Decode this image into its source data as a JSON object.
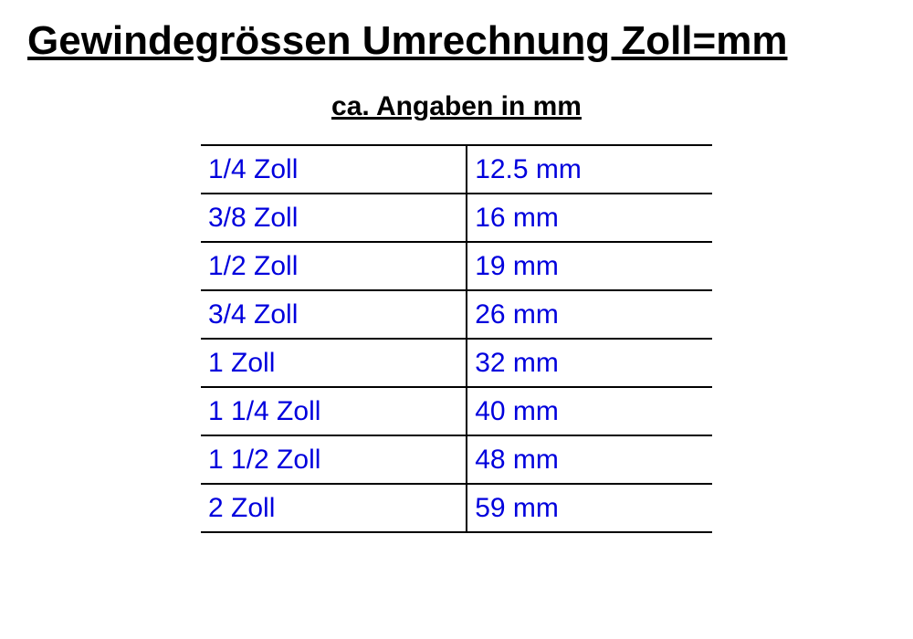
{
  "header": {
    "title": "Gewindegrössen Umrechnung Zoll=mm",
    "subtitle": "ca. Angaben in mm"
  },
  "table": {
    "type": "table",
    "text_color": "#0000dd",
    "border_color": "#000000",
    "background_color": "#ffffff",
    "cell_fontsize": 30,
    "rows": [
      {
        "zoll": "1/4 Zoll",
        "mm": "12.5 mm"
      },
      {
        "zoll": "3/8 Zoll",
        "mm": "16 mm"
      },
      {
        "zoll": "1/2 Zoll",
        "mm": "19 mm"
      },
      {
        "zoll": "3/4 Zoll",
        "mm": "26 mm"
      },
      {
        "zoll": "1 Zoll",
        "mm": "32 mm"
      },
      {
        "zoll": "1 1/4 Zoll",
        "mm": "40 mm"
      },
      {
        "zoll": "1 1/2 Zoll",
        "mm": "48 mm"
      },
      {
        "zoll": "2 Zoll",
        "mm": "59 mm"
      }
    ]
  }
}
